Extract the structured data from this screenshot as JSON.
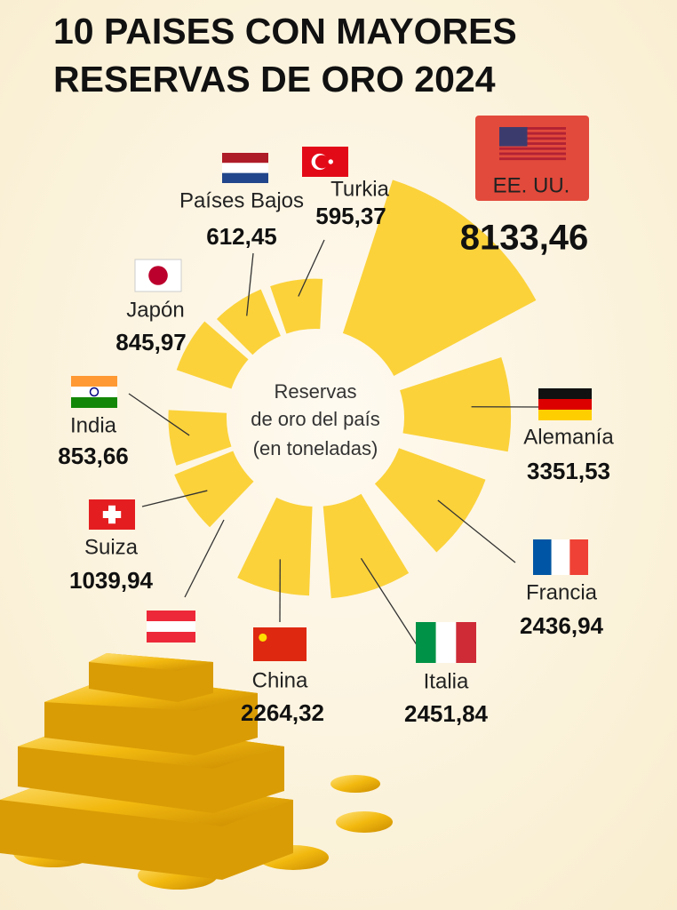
{
  "chart_data": {
    "type": "radial-bar",
    "title": [
      "10 PAISES CON MAYORES",
      "RESERVAS DE ORO 2024"
    ],
    "center_label": [
      "Reservas",
      "de oro del país",
      "(en toneladas)"
    ],
    "categories": [
      "EE. UU.",
      "Alemanía",
      "Francia",
      "Italia",
      "China",
      "Suiza",
      "India",
      "Japón",
      "Países Bajos",
      "Turkia"
    ],
    "values": [
      8133.46,
      3351.53,
      2436.94,
      2451.84,
      2264.32,
      1039.94,
      853.66,
      845.97,
      612.45,
      595.37
    ],
    "value_labels": [
      "8133,46",
      "3351,53",
      "2436,94",
      "2451,84",
      "2264,32",
      "1039,94",
      "853,66",
      "845,97",
      "612,45",
      "595,37"
    ],
    "color": "#fbd23a"
  }
}
